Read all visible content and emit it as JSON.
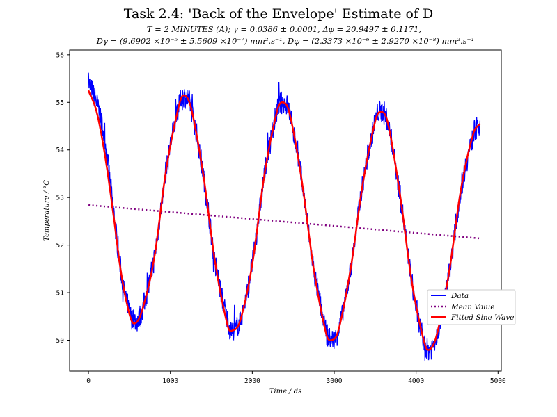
{
  "chart_data": {
    "type": "line",
    "title": "Task 2.4: 'Back of the Envelope' Estimate of D",
    "subtitle_line1": "T = 2 MINUTES (A); γ = 0.0386 ± 0.0001, Δφ = 20.9497 ± 0.1171,",
    "subtitle_line2": "Dγ = (9.6902 ×10⁻⁵ ± 5.5609 ×10⁻⁷) mm².s⁻¹, Dφ = (2.3373 ×10⁻⁶ ± 2.9270 ×10⁻⁸) mm².s⁻¹",
    "xlabel": "Time / ds",
    "ylabel": "Temperature / °C",
    "xlim": [
      -230,
      5040
    ],
    "ylim": [
      49.35,
      56.1
    ],
    "x_ticks": [
      0,
      1000,
      2000,
      3000,
      4000,
      5000
    ],
    "y_ticks": [
      50,
      51,
      52,
      53,
      54,
      55,
      56
    ],
    "legend_position": "lower-right",
    "legend": [
      "Data",
      "Mean Value",
      "Fitted Sine Wave"
    ],
    "series": [
      {
        "name": "Data",
        "color": "#0000ff",
        "style": "noisy-line",
        "x": [
          0,
          100,
          200,
          300,
          400,
          500,
          560,
          650,
          800,
          950,
          1100,
          1160,
          1250,
          1400,
          1550,
          1700,
          1750,
          1850,
          2000,
          2150,
          2300,
          2360,
          2450,
          2600,
          2750,
          2900,
          2960,
          3050,
          3200,
          3350,
          3500,
          3560,
          3650,
          3800,
          3950,
          4100,
          4160,
          4250,
          4400,
          4550,
          4700,
          4780
        ],
        "values": [
          55.4,
          55.0,
          54.2,
          52.8,
          51.4,
          50.6,
          50.4,
          50.6,
          51.7,
          53.6,
          54.9,
          55.1,
          54.9,
          53.5,
          51.6,
          50.4,
          50.2,
          50.4,
          51.6,
          53.5,
          54.8,
          55.0,
          54.8,
          53.4,
          51.5,
          50.2,
          50.0,
          50.2,
          51.5,
          53.3,
          54.6,
          54.8,
          54.6,
          53.1,
          51.2,
          49.9,
          49.8,
          50.1,
          51.4,
          53.2,
          54.3,
          54.5
        ]
      },
      {
        "name": "Mean Value",
        "color": "#800080",
        "style": "dotted",
        "x": [
          0,
          4780
        ],
        "values": [
          52.84,
          52.14
        ]
      },
      {
        "name": "Fitted Sine Wave",
        "color": "#ff0000",
        "style": "solid",
        "x": [
          0,
          100,
          200,
          300,
          400,
          500,
          560,
          650,
          800,
          950,
          1100,
          1160,
          1250,
          1400,
          1550,
          1700,
          1750,
          1850,
          2000,
          2150,
          2300,
          2360,
          2450,
          2600,
          2750,
          2900,
          2960,
          3050,
          3200,
          3350,
          3500,
          3560,
          3650,
          3800,
          3950,
          4100,
          4160,
          4250,
          4400,
          4550,
          4700,
          4780
        ],
        "values": [
          55.25,
          54.8,
          53.9,
          52.7,
          51.4,
          50.55,
          50.35,
          50.6,
          51.7,
          53.6,
          54.9,
          55.15,
          54.9,
          53.5,
          51.6,
          50.3,
          50.2,
          50.4,
          51.6,
          53.5,
          54.8,
          55.0,
          54.8,
          53.4,
          51.5,
          50.15,
          50.0,
          50.2,
          51.5,
          53.3,
          54.6,
          54.8,
          54.6,
          53.1,
          51.2,
          49.95,
          49.8,
          50.1,
          51.4,
          53.2,
          54.35,
          54.55
        ]
      }
    ]
  }
}
